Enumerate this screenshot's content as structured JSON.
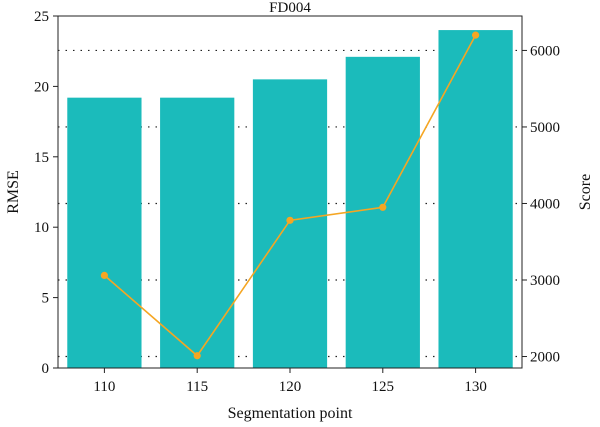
{
  "chart_data": {
    "type": "bar+line",
    "title": "FD004",
    "xlabel": "Segmentation point",
    "categories": [
      "110",
      "115",
      "120",
      "125",
      "130"
    ],
    "left_axis": {
      "label": "RMSE",
      "ylim": [
        0,
        25
      ],
      "ticks": [
        "0",
        "5",
        "10",
        "15",
        "20",
        "25"
      ]
    },
    "right_axis": {
      "label": "Score",
      "ylim": [
        1850,
        6450
      ],
      "ticks": [
        "2000",
        "3000",
        "4000",
        "5000",
        "6000"
      ]
    },
    "grid": "horizontal dotted",
    "series": [
      {
        "type": "bar",
        "axis": "left",
        "values": [
          19.2,
          19.2,
          20.5,
          22.1,
          24.0
        ],
        "color": "#1bbbbb"
      },
      {
        "type": "line",
        "axis": "right",
        "values": [
          3060,
          2010,
          3780,
          3950,
          6200
        ],
        "color": "#f5a623"
      }
    ]
  }
}
